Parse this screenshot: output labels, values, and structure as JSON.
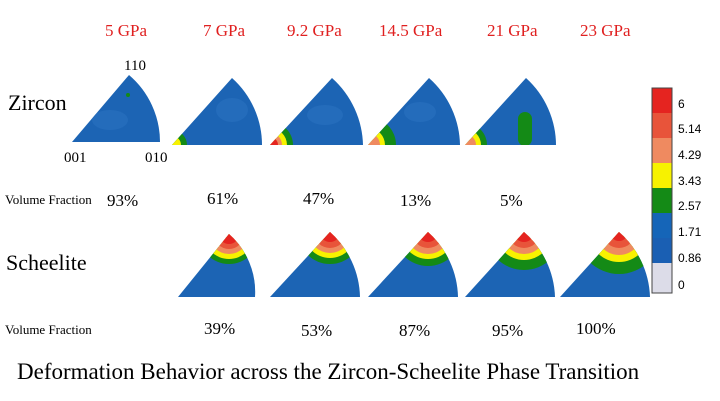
{
  "pressures": [
    "5 GPa",
    "7 GPa",
    "9.2 GPa",
    "14.5 GPa",
    "21 GPa",
    "23 GPa"
  ],
  "phases": {
    "zircon": "Zircon",
    "scheelite": "Scheelite"
  },
  "zircon_axes": {
    "top": "110",
    "left": "001",
    "right": "010"
  },
  "volume_fraction_label": "Volume Fraction",
  "zircon_volume_fractions": [
    "93%",
    "61%",
    "47%",
    "13%",
    "5%"
  ],
  "scheelite_volume_fractions": [
    "39%",
    "53%",
    "87%",
    "95%",
    "100%"
  ],
  "colorbar": {
    "ticks": [
      "6",
      "5.14",
      "4.29",
      "3.43",
      "2.57",
      "1.71",
      "0.86",
      "0"
    ],
    "colors": [
      "#e52420",
      "#e8543a",
      "#ef8a60",
      "#f7f200",
      "#148a16",
      "#1565b8",
      "#1a5fb3",
      "#dcdce8"
    ]
  },
  "caption": "Deformation Behavior across the Zircon-Scheelite Phase Transition",
  "colors": {
    "pressure_text": "#e02020",
    "pole_figure_blue": "#1c64b4"
  }
}
